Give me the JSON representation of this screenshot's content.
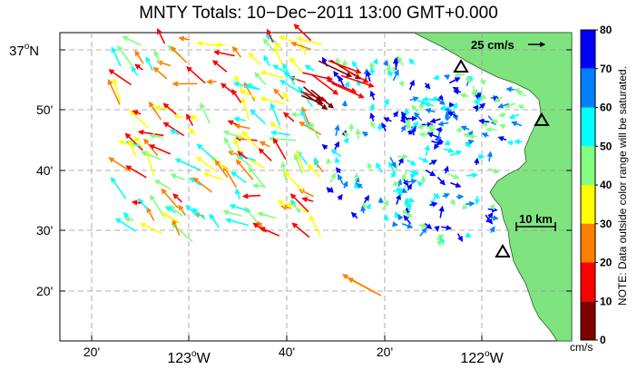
{
  "title": "MNTY Totals: 10−Dec−2011 13:00 GMT+0.000",
  "lat_labels": [
    {
      "text": "37",
      "suffix": "N"
    },
    {
      "text": "50'"
    },
    {
      "text": "40'"
    },
    {
      "text": "30'"
    },
    {
      "text": "20'"
    }
  ],
  "lon_labels": [
    {
      "text": "20'"
    },
    {
      "text": "123",
      "suffix": "W"
    },
    {
      "text": "40'"
    },
    {
      "text": "20'"
    },
    {
      "text": "122",
      "suffix": "W"
    }
  ],
  "degree_symbol": "o",
  "scale_vector_label": "25 cm/s",
  "scale_bar_label": "10 km",
  "colorbar": {
    "ticks": [
      "80",
      "70",
      "60",
      "50",
      "40",
      "30",
      "20",
      "10",
      "0"
    ],
    "colors": [
      "#800000",
      "#ff0000",
      "#ff8000",
      "#ffff00",
      "#80ff80",
      "#00ffff",
      "#0080ff",
      "#0000ff"
    ],
    "unit": "cm/s",
    "note": "NOTE: Data outside color range will be saturated."
  },
  "land_color": "#7fe47f",
  "vector_colors": [
    "#0000ff",
    "#0080ff",
    "#00ffff",
    "#80ff80",
    "#ffff00",
    "#ff8000",
    "#ff0000",
    "#800000"
  ],
  "stations_icon": "triangle-station-icon"
}
